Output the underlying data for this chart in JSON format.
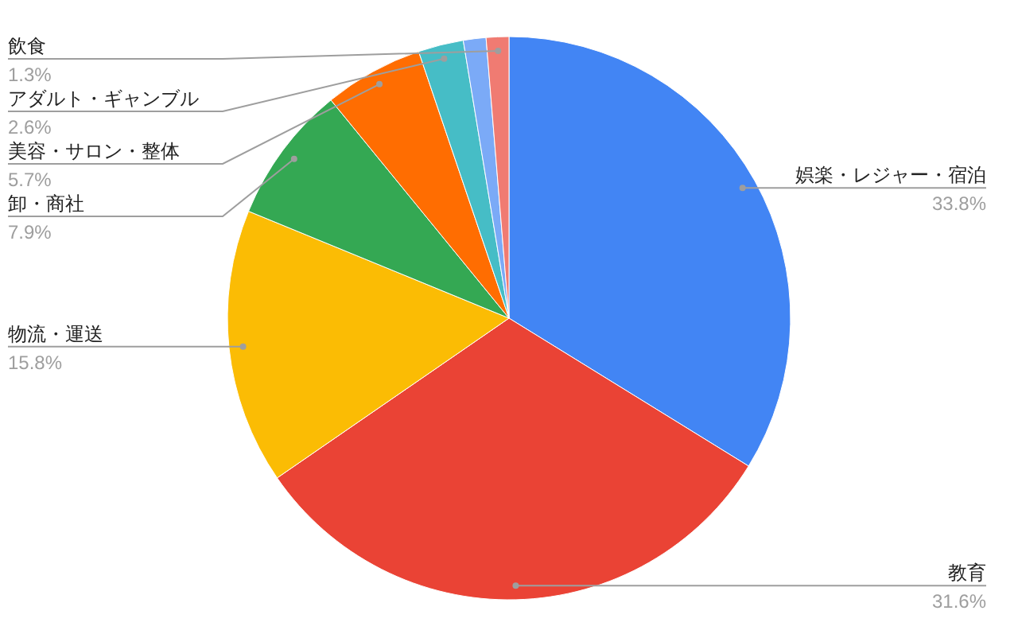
{
  "chart_data": {
    "type": "pie",
    "categories": [
      "娯楽・レジャー・宿泊",
      "教育",
      "物流・運送",
      "卸・商社",
      "美容・サロン・整体",
      "アダルト・ギャンブル",
      null,
      "飲食"
    ],
    "values": [
      33.8,
      31.6,
      15.8,
      7.9,
      5.7,
      2.6,
      1.3,
      1.3
    ],
    "value_labels": [
      "33.8%",
      "31.6%",
      "15.8%",
      "7.9%",
      "5.7%",
      "2.6%",
      null,
      "1.3%"
    ],
    "colors": [
      "#4285f4",
      "#ea4335",
      "#fbbc04",
      "#34a853",
      "#ff6d01",
      "#46bdc6",
      "#7baaf7",
      "#f07b72"
    ]
  }
}
